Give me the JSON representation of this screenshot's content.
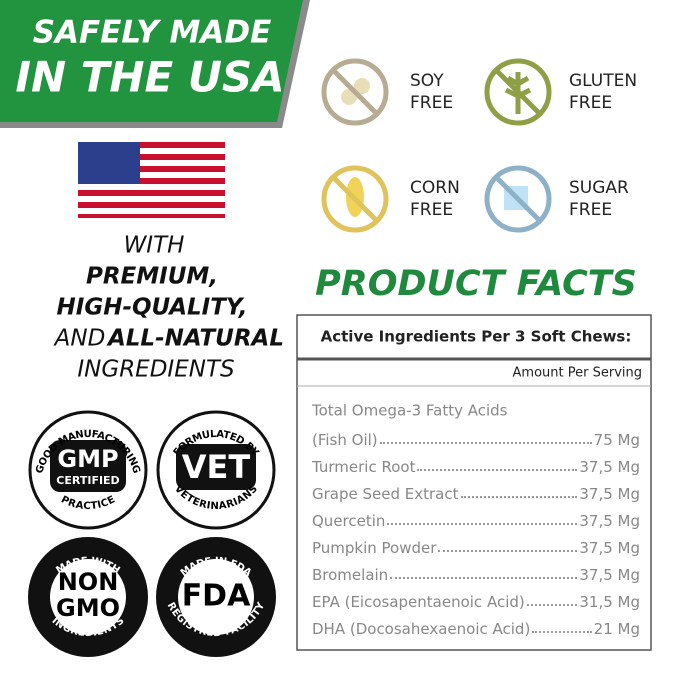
{
  "banner": {
    "line1": "SAFELY MADE",
    "line2": "IN THE USA"
  },
  "tagline": {
    "line1": "WITH",
    "line2": "PREMIUM,",
    "line3": "HIGH-QUALITY,",
    "line4_a": "AND",
    "line4_b": "ALL-NATURAL",
    "line5": "INGREDIENTS"
  },
  "badges": [
    {
      "ring_top": "GOOD MANUFACTURING",
      "main": "GMP",
      "sub": "CERTIFIED",
      "ring_bottom": "PRACTICE"
    },
    {
      "ring_top": "FORMULATED BY",
      "main": "VET",
      "ring_bottom": "VETERINARIANS"
    },
    {
      "ring_top": "MADE WITH",
      "main": "NON",
      "sub": "GMO",
      "ring_bottom": "INGREDIENTS"
    },
    {
      "ring_top": "MADE IN FDA",
      "main": "FDA",
      "ring_bottom": "REGISTRED FACILITY"
    }
  ],
  "free_icons": [
    {
      "label": "SOY",
      "free": "FREE"
    },
    {
      "label": "GLUTEN",
      "free": "FREE"
    },
    {
      "label": "CORN",
      "free": "FREE"
    },
    {
      "label": "SUGAR",
      "free": "FREE"
    }
  ],
  "facts": {
    "title": "PRODUCT FACTS",
    "header": "Active Ingredients Per 3 Soft Chews:",
    "amount_header": "Amount Per Serving",
    "heading": "Total Omega-3 Fatty Acids",
    "rows": [
      {
        "name": "(Fish Oil)",
        "amount": "75 Mg"
      },
      {
        "name": "Turmeric Root",
        "amount": "37,5 Mg"
      },
      {
        "name": "Grape Seed Extract",
        "amount": "37,5 Mg"
      },
      {
        "name": "Quercetin",
        "amount": "37,5 Mg"
      },
      {
        "name": "Pumpkin Powder",
        "amount": "37,5 Mg"
      },
      {
        "name": "Bromelain",
        "amount": "37,5 Mg"
      },
      {
        "name": "EPA (Eicosapentaenoic Acid)",
        "amount": "31,5 Mg"
      },
      {
        "name": "DHA (Docosahexaenoic Acid)",
        "amount": "21 Mg"
      }
    ]
  }
}
